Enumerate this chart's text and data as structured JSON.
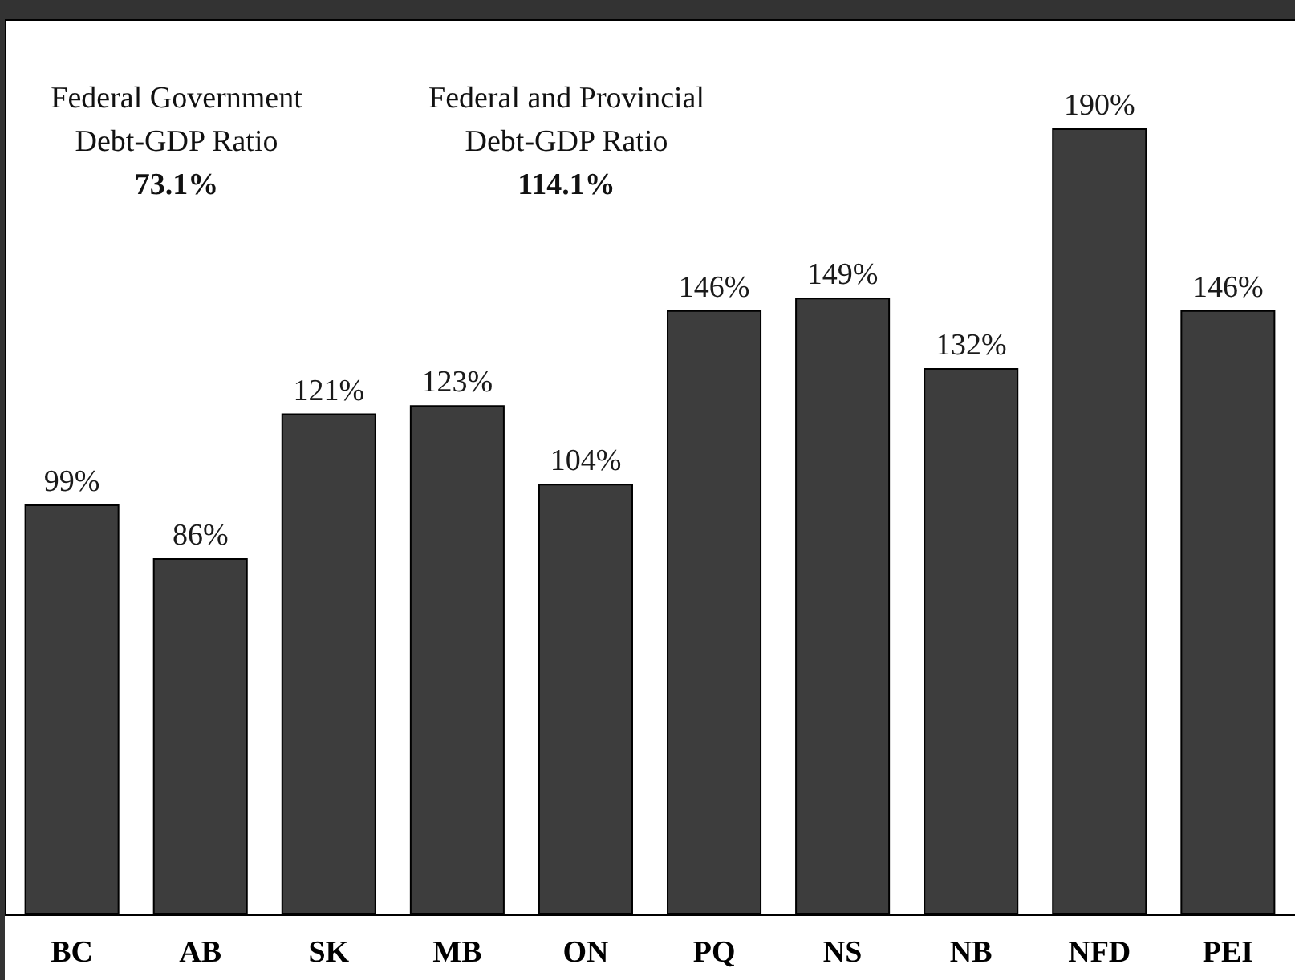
{
  "chart_data": {
    "type": "bar",
    "categories": [
      "BC",
      "AB",
      "SK",
      "MB",
      "ON",
      "PQ",
      "NS",
      "NB",
      "NFD",
      "PEI"
    ],
    "values": [
      99,
      86,
      121,
      123,
      104,
      146,
      149,
      132,
      190,
      146
    ],
    "value_labels": [
      "99%",
      "86%",
      "121%",
      "123%",
      "104%",
      "146%",
      "149%",
      "132%",
      "190%",
      "146%"
    ],
    "color": "#3d3d3d",
    "annotations": [
      "Federal Government\nDebt-GDP Ratio",
      "73.1%",
      "Federal and Provincial\nDebt-GDP Ratio",
      "114.1%"
    ]
  }
}
